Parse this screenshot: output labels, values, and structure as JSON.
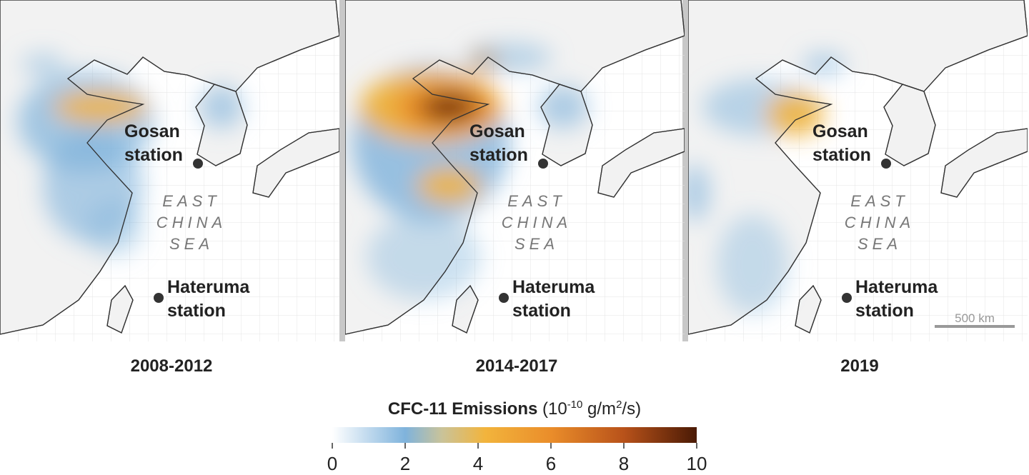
{
  "panels": [
    {
      "label": "2008-2012"
    },
    {
      "label": "2014-2017"
    },
    {
      "label": "2019"
    }
  ],
  "stations": [
    {
      "lines": [
        "Gosan",
        "station"
      ]
    },
    {
      "lines": [
        "Hateruma",
        "station"
      ]
    }
  ],
  "sea": [
    "EAST",
    "CHINA",
    "SEA"
  ],
  "scale_bar": "500 km",
  "legend": {
    "title": "CFC-11 Emissions",
    "unit": {
      "open": "(10",
      "exp": "-10",
      "mid": " g/m",
      "sq": "2",
      "close": "/s)"
    },
    "range": [
      0,
      10
    ],
    "ticks": [
      0,
      2,
      4,
      6,
      8,
      10
    ]
  }
}
